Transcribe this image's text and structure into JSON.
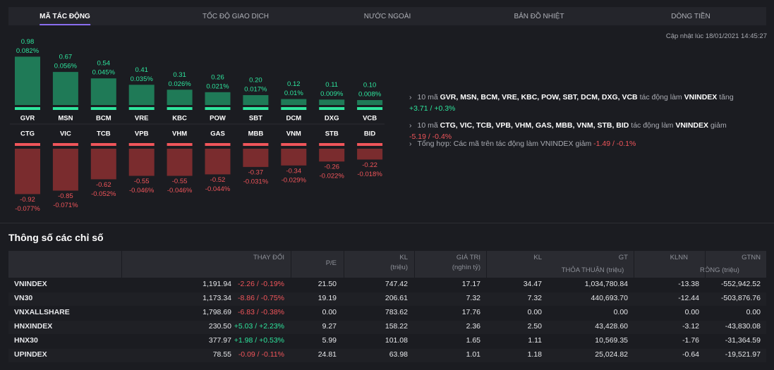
{
  "tabs": [
    "MÃ TÁC ĐỘNG",
    "TỐC ĐỘ GIAO DỊCH",
    "NƯỚC NGOÀI",
    "BẢN ĐỒ NHIỆT",
    "DÒNG TIỀN"
  ],
  "updated": "Cập nhật lúc 18/01/2021 14:45:27",
  "impact": {
    "gainers": {
      "color": "#1f7a57",
      "cap_color": "#2ee59d",
      "codes": [
        "GVR",
        "MSN",
        "BCM",
        "VRE",
        "KBC",
        "POW",
        "SBT",
        "DCM",
        "DXG",
        "VCB"
      ],
      "values": [
        0.98,
        0.67,
        0.54,
        0.41,
        0.31,
        0.26,
        0.2,
        0.12,
        0.11,
        0.1
      ],
      "value_labels": [
        "0.98",
        "0.67",
        "0.54",
        "0.41",
        "0.31",
        "0.26",
        "0.20",
        "0.12",
        "0.11",
        "0.10"
      ],
      "pct_labels": [
        "0.082%",
        "0.056%",
        "0.045%",
        "0.035%",
        "0.026%",
        "0.021%",
        "0.017%",
        "0.01%",
        "0.009%",
        "0.008%"
      ]
    },
    "losers": {
      "color": "#7a2c2e",
      "cap_color": "#f0555a",
      "codes": [
        "CTG",
        "VIC",
        "TCB",
        "VPB",
        "VHM",
        "GAS",
        "MBB",
        "VNM",
        "STB",
        "BID"
      ],
      "values": [
        -0.92,
        -0.85,
        -0.62,
        -0.55,
        -0.55,
        -0.52,
        -0.37,
        -0.34,
        -0.26,
        -0.22
      ],
      "value_labels": [
        "-0.92",
        "-0.85",
        "-0.62",
        "-0.55",
        "-0.55",
        "-0.52",
        "-0.37",
        "-0.34",
        "-0.26",
        "-0.22"
      ],
      "pct_labels": [
        "-0.077%",
        "-0.071%",
        "-0.052%",
        "-0.046%",
        "-0.046%",
        "-0.044%",
        "-0.031%",
        "-0.029%",
        "-0.022%",
        "-0.018%"
      ]
    }
  },
  "notes": [
    {
      "prefix": "10 mã",
      "codes": "GVR, MSN, BCM, VRE, KBC, POW, SBT, DCM, DXG, VCB",
      "mid": "tác động làm",
      "index": "VNINDEX",
      "dir": "tăng",
      "change": "+3.71 / +0.3%"
    },
    {
      "prefix": "10 mã",
      "codes": "CTG, VIC, TCB, VPB, VHM, GAS, MBB, VNM, STB, BID",
      "mid": "tác động làm",
      "index": "VNINDEX",
      "dir": "giảm",
      "change": "-5.19 / -0.4%"
    },
    {
      "text": "Tổng hợp: Các mã trên tác động làm VNINDEX giảm",
      "change": "-1.49 / -0.1%"
    }
  ],
  "section_title": "Thông số các chỉ số",
  "table": {
    "header": [
      "THAY ĐỔI",
      "P/E",
      "KL",
      "(triệu)",
      "GIÁ TRỊ",
      "(nghìn tỷ)",
      "KL",
      "GT",
      "THỎA THUẬN (triệu)",
      "KLNN",
      "GTNN",
      "RÒNG (triệu)"
    ],
    "rows": [
      [
        "VNINDEX",
        "1,191.94",
        "-2.26 / -0.19%",
        "21.50",
        "747.42",
        "17.17",
        "34.47",
        "1,034,780.84",
        "-13.38",
        "-552,942.52"
      ],
      [
        "VN30",
        "1,173.34",
        "-8.86 / -0.75%",
        "19.19",
        "206.61",
        "7.32",
        "7.32",
        "440,693.70",
        "-12.44",
        "-503,876.76"
      ],
      [
        "VNXALLSHARE",
        "1,798.69",
        "-6.83 / -0.38%",
        "0.00",
        "783.62",
        "17.76",
        "0.00",
        "0.00",
        "0.00",
        "0.00"
      ],
      [
        "HNXINDEX",
        "230.50",
        "+5.03 / +2.23%",
        "9.27",
        "158.22",
        "2.36",
        "2.50",
        "43,428.60",
        "-3.12",
        "-43,830.08"
      ],
      [
        "HNX30",
        "377.97",
        "+1.98 / +0.53%",
        "5.99",
        "101.08",
        "1.65",
        "1.11",
        "10,569.35",
        "-1.76",
        "-31,364.59"
      ],
      [
        "UPINDEX",
        "78.55",
        "-0.09 / -0.11%",
        "24.81",
        "63.98",
        "1.01",
        "1.18",
        "25,024.82",
        "-0.64",
        "-19,521.97"
      ]
    ]
  }
}
